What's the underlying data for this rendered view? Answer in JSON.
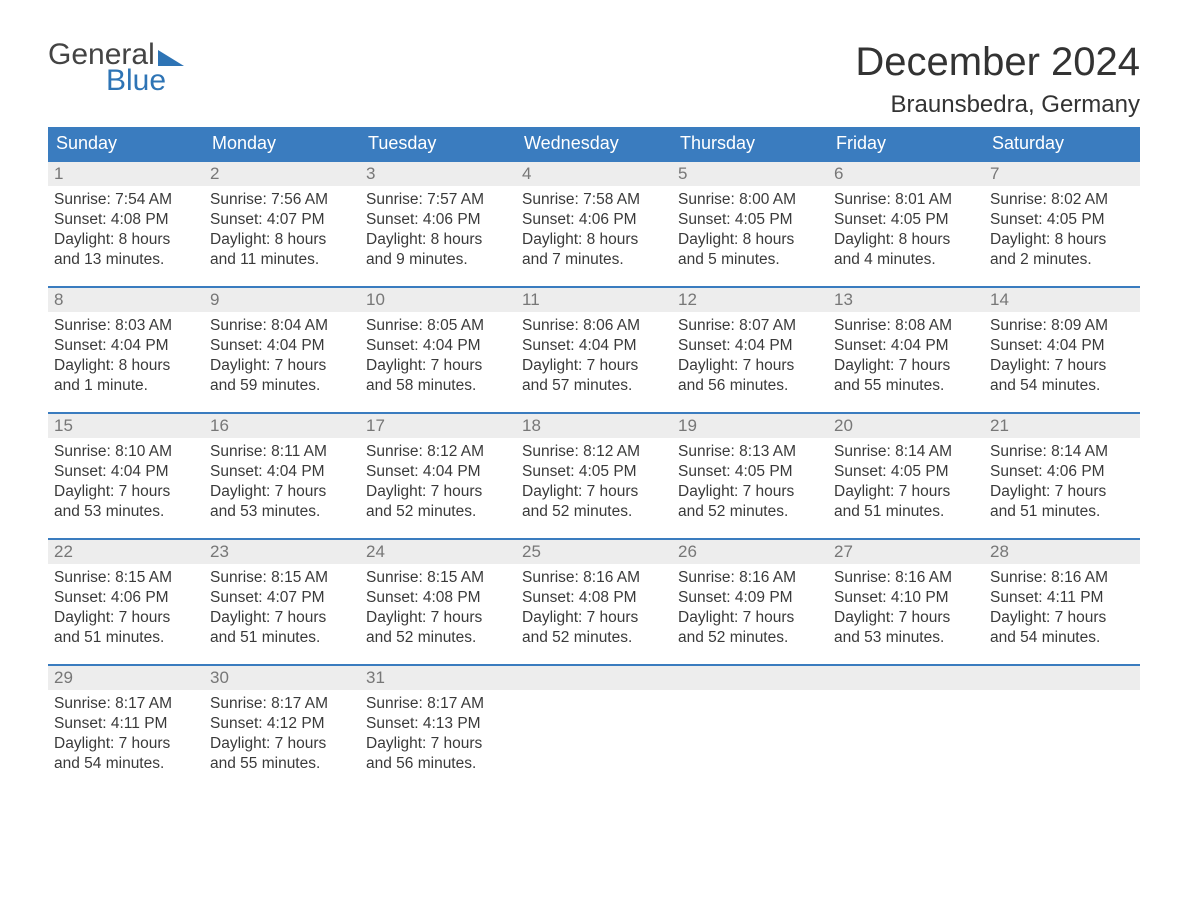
{
  "logo": {
    "word1": "General",
    "word2": "Blue"
  },
  "title": "December 2024",
  "location": "Braunsbedra, Germany",
  "weekdays": [
    "Sunday",
    "Monday",
    "Tuesday",
    "Wednesday",
    "Thursday",
    "Friday",
    "Saturday"
  ],
  "colors": {
    "header_bg": "#3a7cbf",
    "header_text": "#ffffff",
    "daynum_bg": "#ededed",
    "daynum_text": "#777777",
    "body_text": "#3a3a3a",
    "week_divider": "#3a7cbf",
    "logo_blue": "#2e74b5",
    "page_bg": "#ffffff"
  },
  "typography": {
    "title_fontsize": 40,
    "location_fontsize": 24,
    "weekday_fontsize": 18,
    "daynum_fontsize": 17,
    "body_fontsize": 15.5,
    "font_family": "Arial"
  },
  "days": [
    {
      "n": "1",
      "sunrise": "Sunrise: 7:54 AM",
      "sunset": "Sunset: 4:08 PM",
      "d1": "Daylight: 8 hours",
      "d2": "and 13 minutes."
    },
    {
      "n": "2",
      "sunrise": "Sunrise: 7:56 AM",
      "sunset": "Sunset: 4:07 PM",
      "d1": "Daylight: 8 hours",
      "d2": "and 11 minutes."
    },
    {
      "n": "3",
      "sunrise": "Sunrise: 7:57 AM",
      "sunset": "Sunset: 4:06 PM",
      "d1": "Daylight: 8 hours",
      "d2": "and 9 minutes."
    },
    {
      "n": "4",
      "sunrise": "Sunrise: 7:58 AM",
      "sunset": "Sunset: 4:06 PM",
      "d1": "Daylight: 8 hours",
      "d2": "and 7 minutes."
    },
    {
      "n": "5",
      "sunrise": "Sunrise: 8:00 AM",
      "sunset": "Sunset: 4:05 PM",
      "d1": "Daylight: 8 hours",
      "d2": "and 5 minutes."
    },
    {
      "n": "6",
      "sunrise": "Sunrise: 8:01 AM",
      "sunset": "Sunset: 4:05 PM",
      "d1": "Daylight: 8 hours",
      "d2": "and 4 minutes."
    },
    {
      "n": "7",
      "sunrise": "Sunrise: 8:02 AM",
      "sunset": "Sunset: 4:05 PM",
      "d1": "Daylight: 8 hours",
      "d2": "and 2 minutes."
    },
    {
      "n": "8",
      "sunrise": "Sunrise: 8:03 AM",
      "sunset": "Sunset: 4:04 PM",
      "d1": "Daylight: 8 hours",
      "d2": "and 1 minute."
    },
    {
      "n": "9",
      "sunrise": "Sunrise: 8:04 AM",
      "sunset": "Sunset: 4:04 PM",
      "d1": "Daylight: 7 hours",
      "d2": "and 59 minutes."
    },
    {
      "n": "10",
      "sunrise": "Sunrise: 8:05 AM",
      "sunset": "Sunset: 4:04 PM",
      "d1": "Daylight: 7 hours",
      "d2": "and 58 minutes."
    },
    {
      "n": "11",
      "sunrise": "Sunrise: 8:06 AM",
      "sunset": "Sunset: 4:04 PM",
      "d1": "Daylight: 7 hours",
      "d2": "and 57 minutes."
    },
    {
      "n": "12",
      "sunrise": "Sunrise: 8:07 AM",
      "sunset": "Sunset: 4:04 PM",
      "d1": "Daylight: 7 hours",
      "d2": "and 56 minutes."
    },
    {
      "n": "13",
      "sunrise": "Sunrise: 8:08 AM",
      "sunset": "Sunset: 4:04 PM",
      "d1": "Daylight: 7 hours",
      "d2": "and 55 minutes."
    },
    {
      "n": "14",
      "sunrise": "Sunrise: 8:09 AM",
      "sunset": "Sunset: 4:04 PM",
      "d1": "Daylight: 7 hours",
      "d2": "and 54 minutes."
    },
    {
      "n": "15",
      "sunrise": "Sunrise: 8:10 AM",
      "sunset": "Sunset: 4:04 PM",
      "d1": "Daylight: 7 hours",
      "d2": "and 53 minutes."
    },
    {
      "n": "16",
      "sunrise": "Sunrise: 8:11 AM",
      "sunset": "Sunset: 4:04 PM",
      "d1": "Daylight: 7 hours",
      "d2": "and 53 minutes."
    },
    {
      "n": "17",
      "sunrise": "Sunrise: 8:12 AM",
      "sunset": "Sunset: 4:04 PM",
      "d1": "Daylight: 7 hours",
      "d2": "and 52 minutes."
    },
    {
      "n": "18",
      "sunrise": "Sunrise: 8:12 AM",
      "sunset": "Sunset: 4:05 PM",
      "d1": "Daylight: 7 hours",
      "d2": "and 52 minutes."
    },
    {
      "n": "19",
      "sunrise": "Sunrise: 8:13 AM",
      "sunset": "Sunset: 4:05 PM",
      "d1": "Daylight: 7 hours",
      "d2": "and 52 minutes."
    },
    {
      "n": "20",
      "sunrise": "Sunrise: 8:14 AM",
      "sunset": "Sunset: 4:05 PM",
      "d1": "Daylight: 7 hours",
      "d2": "and 51 minutes."
    },
    {
      "n": "21",
      "sunrise": "Sunrise: 8:14 AM",
      "sunset": "Sunset: 4:06 PM",
      "d1": "Daylight: 7 hours",
      "d2": "and 51 minutes."
    },
    {
      "n": "22",
      "sunrise": "Sunrise: 8:15 AM",
      "sunset": "Sunset: 4:06 PM",
      "d1": "Daylight: 7 hours",
      "d2": "and 51 minutes."
    },
    {
      "n": "23",
      "sunrise": "Sunrise: 8:15 AM",
      "sunset": "Sunset: 4:07 PM",
      "d1": "Daylight: 7 hours",
      "d2": "and 51 minutes."
    },
    {
      "n": "24",
      "sunrise": "Sunrise: 8:15 AM",
      "sunset": "Sunset: 4:08 PM",
      "d1": "Daylight: 7 hours",
      "d2": "and 52 minutes."
    },
    {
      "n": "25",
      "sunrise": "Sunrise: 8:16 AM",
      "sunset": "Sunset: 4:08 PM",
      "d1": "Daylight: 7 hours",
      "d2": "and 52 minutes."
    },
    {
      "n": "26",
      "sunrise": "Sunrise: 8:16 AM",
      "sunset": "Sunset: 4:09 PM",
      "d1": "Daylight: 7 hours",
      "d2": "and 52 minutes."
    },
    {
      "n": "27",
      "sunrise": "Sunrise: 8:16 AM",
      "sunset": "Sunset: 4:10 PM",
      "d1": "Daylight: 7 hours",
      "d2": "and 53 minutes."
    },
    {
      "n": "28",
      "sunrise": "Sunrise: 8:16 AM",
      "sunset": "Sunset: 4:11 PM",
      "d1": "Daylight: 7 hours",
      "d2": "and 54 minutes."
    },
    {
      "n": "29",
      "sunrise": "Sunrise: 8:17 AM",
      "sunset": "Sunset: 4:11 PM",
      "d1": "Daylight: 7 hours",
      "d2": "and 54 minutes."
    },
    {
      "n": "30",
      "sunrise": "Sunrise: 8:17 AM",
      "sunset": "Sunset: 4:12 PM",
      "d1": "Daylight: 7 hours",
      "d2": "and 55 minutes."
    },
    {
      "n": "31",
      "sunrise": "Sunrise: 8:17 AM",
      "sunset": "Sunset: 4:13 PM",
      "d1": "Daylight: 7 hours",
      "d2": "and 56 minutes."
    }
  ]
}
